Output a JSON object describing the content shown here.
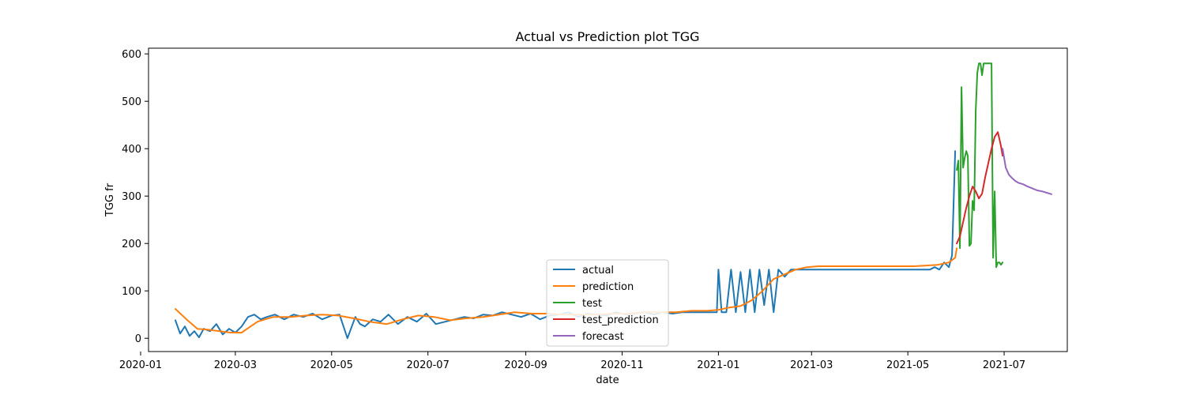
{
  "chart_data": {
    "type": "line",
    "title": "Actual vs Prediction plot TGG",
    "xlabel": "date",
    "ylabel": "TGG fr",
    "xlim": [
      "2020-01-06",
      "2021-08-10"
    ],
    "ylim": [
      -28,
      612
    ],
    "x_ticks": [
      "2020-01",
      "2020-03",
      "2020-05",
      "2020-07",
      "2020-09",
      "2020-11",
      "2021-01",
      "2021-03",
      "2021-05",
      "2021-07"
    ],
    "x_tick_dates": [
      "2020-01-01",
      "2020-03-01",
      "2020-05-01",
      "2020-07-01",
      "2020-09-01",
      "2020-11-01",
      "2021-01-01",
      "2021-03-01",
      "2021-05-01",
      "2021-07-01"
    ],
    "y_ticks": [
      0,
      100,
      200,
      300,
      400,
      500,
      600
    ],
    "grid": false,
    "legend_position": "lower-center",
    "series": [
      {
        "name": "actual",
        "color": "#1f77b4",
        "x": [
          "2020-01-23",
          "2020-01-26",
          "2020-01-29",
          "2020-02-01",
          "2020-02-04",
          "2020-02-07",
          "2020-02-10",
          "2020-02-14",
          "2020-02-18",
          "2020-02-22",
          "2020-02-26",
          "2020-03-01",
          "2020-03-05",
          "2020-03-09",
          "2020-03-13",
          "2020-03-17",
          "2020-03-21",
          "2020-03-26",
          "2020-04-01",
          "2020-04-07",
          "2020-04-13",
          "2020-04-19",
          "2020-04-25",
          "2020-05-01",
          "2020-05-06",
          "2020-05-11",
          "2020-05-16",
          "2020-05-19",
          "2020-05-22",
          "2020-05-27",
          "2020-06-01",
          "2020-06-06",
          "2020-06-12",
          "2020-06-18",
          "2020-06-24",
          "2020-06-30",
          "2020-07-06",
          "2020-07-12",
          "2020-07-18",
          "2020-07-24",
          "2020-07-30",
          "2020-08-05",
          "2020-08-11",
          "2020-08-17",
          "2020-08-23",
          "2020-08-29",
          "2020-09-04",
          "2020-09-10",
          "2020-09-16",
          "2020-09-22",
          "2020-09-28",
          "2020-10-04",
          "2020-10-10",
          "2020-10-16",
          "2020-10-22",
          "2020-10-28",
          "2020-11-03",
          "2020-11-09",
          "2020-11-15",
          "2020-11-21",
          "2020-11-27",
          "2020-12-03",
          "2020-12-09",
          "2020-12-15",
          "2020-12-21",
          "2020-12-27",
          "2020-12-31",
          "2021-01-01",
          "2021-01-03",
          "2021-01-06",
          "2021-01-09",
          "2021-01-12",
          "2021-01-15",
          "2021-01-18",
          "2021-01-21",
          "2021-01-24",
          "2021-01-27",
          "2021-01-30",
          "2021-02-02",
          "2021-02-05",
          "2021-02-08",
          "2021-02-12",
          "2021-02-16",
          "2021-02-20",
          "2021-03-01",
          "2021-03-15",
          "2021-04-01",
          "2021-04-15",
          "2021-05-01",
          "2021-05-15",
          "2021-05-18",
          "2021-05-21",
          "2021-05-24",
          "2021-05-27",
          "2021-05-29",
          "2021-05-31"
        ],
        "y": [
          38,
          10,
          25,
          5,
          15,
          2,
          20,
          15,
          30,
          8,
          20,
          12,
          25,
          45,
          50,
          40,
          45,
          50,
          40,
          50,
          45,
          52,
          40,
          48,
          50,
          0,
          45,
          30,
          25,
          40,
          35,
          50,
          30,
          45,
          35,
          52,
          30,
          35,
          40,
          45,
          42,
          50,
          48,
          55,
          50,
          45,
          52,
          40,
          48,
          50,
          55,
          45,
          52,
          50,
          48,
          55,
          50,
          52,
          55,
          50,
          55,
          52,
          55,
          55,
          55,
          55,
          55,
          145,
          55,
          55,
          145,
          55,
          140,
          55,
          145,
          55,
          145,
          70,
          145,
          55,
          145,
          130,
          145,
          145,
          145,
          145,
          145,
          145,
          145,
          145,
          150,
          145,
          160,
          150,
          175,
          395
        ]
      },
      {
        "name": "prediction",
        "color": "#ff7f0e",
        "x": [
          "2020-01-23",
          "2020-01-30",
          "2020-02-06",
          "2020-02-13",
          "2020-02-20",
          "2020-02-27",
          "2020-03-05",
          "2020-03-15",
          "2020-03-25",
          "2020-04-05",
          "2020-04-15",
          "2020-04-25",
          "2020-05-05",
          "2020-05-15",
          "2020-05-25",
          "2020-06-05",
          "2020-06-15",
          "2020-06-25",
          "2020-07-05",
          "2020-07-15",
          "2020-07-25",
          "2020-08-05",
          "2020-08-15",
          "2020-08-25",
          "2020-09-05",
          "2020-09-15",
          "2020-09-25",
          "2020-10-05",
          "2020-10-15",
          "2020-10-25",
          "2020-11-05",
          "2020-11-15",
          "2020-11-25",
          "2020-12-05",
          "2020-12-15",
          "2020-12-25",
          "2021-01-01",
          "2021-01-08",
          "2021-01-15",
          "2021-01-22",
          "2021-01-29",
          "2021-02-05",
          "2021-02-12",
          "2021-02-19",
          "2021-02-26",
          "2021-03-05",
          "2021-03-20",
          "2021-04-05",
          "2021-04-20",
          "2021-05-05",
          "2021-05-20",
          "2021-05-27",
          "2021-05-31",
          "2021-06-01"
        ],
        "y": [
          62,
          40,
          20,
          18,
          15,
          12,
          12,
          35,
          45,
          45,
          48,
          50,
          48,
          42,
          35,
          30,
          40,
          48,
          45,
          38,
          42,
          45,
          50,
          55,
          52,
          52,
          50,
          50,
          50,
          52,
          52,
          55,
          55,
          55,
          58,
          58,
          60,
          65,
          68,
          80,
          100,
          125,
          135,
          145,
          150,
          152,
          152,
          152,
          152,
          152,
          155,
          160,
          170,
          190
        ]
      },
      {
        "name": "test",
        "color": "#2ca02c",
        "x": [
          "2021-06-01",
          "2021-06-02",
          "2021-06-03",
          "2021-06-04",
          "2021-06-05",
          "2021-06-06",
          "2021-06-07",
          "2021-06-08",
          "2021-06-09",
          "2021-06-10",
          "2021-06-11",
          "2021-06-12",
          "2021-06-13",
          "2021-06-14",
          "2021-06-15",
          "2021-06-16",
          "2021-06-17",
          "2021-06-18",
          "2021-06-19",
          "2021-06-20",
          "2021-06-21",
          "2021-06-22",
          "2021-06-23",
          "2021-06-24",
          "2021-06-25",
          "2021-06-26",
          "2021-06-27",
          "2021-06-28",
          "2021-06-29",
          "2021-06-30"
        ],
        "y": [
          355,
          375,
          190,
          530,
          360,
          380,
          395,
          385,
          195,
          200,
          290,
          270,
          480,
          560,
          580,
          580,
          555,
          580,
          580,
          580,
          580,
          580,
          580,
          170,
          310,
          150,
          160,
          160,
          155,
          160
        ]
      },
      {
        "name": "test_prediction",
        "color": "#d62728",
        "x": [
          "2021-06-01",
          "2021-06-03",
          "2021-06-05",
          "2021-06-07",
          "2021-06-09",
          "2021-06-11",
          "2021-06-13",
          "2021-06-15",
          "2021-06-17",
          "2021-06-19",
          "2021-06-21",
          "2021-06-23",
          "2021-06-25",
          "2021-06-27",
          "2021-06-28",
          "2021-06-29",
          "2021-06-30"
        ],
        "y": [
          200,
          215,
          245,
          275,
          300,
          320,
          310,
          295,
          305,
          340,
          370,
          400,
          425,
          435,
          420,
          405,
          385
        ]
      },
      {
        "name": "forecast",
        "color": "#9467bd",
        "x": [
          "2021-06-30",
          "2021-07-02",
          "2021-07-04",
          "2021-07-06",
          "2021-07-08",
          "2021-07-10",
          "2021-07-13",
          "2021-07-16",
          "2021-07-19",
          "2021-07-22",
          "2021-07-25",
          "2021-07-28",
          "2021-07-31"
        ],
        "y": [
          400,
          360,
          345,
          338,
          332,
          328,
          325,
          320,
          316,
          312,
          310,
          307,
          304
        ]
      }
    ]
  }
}
